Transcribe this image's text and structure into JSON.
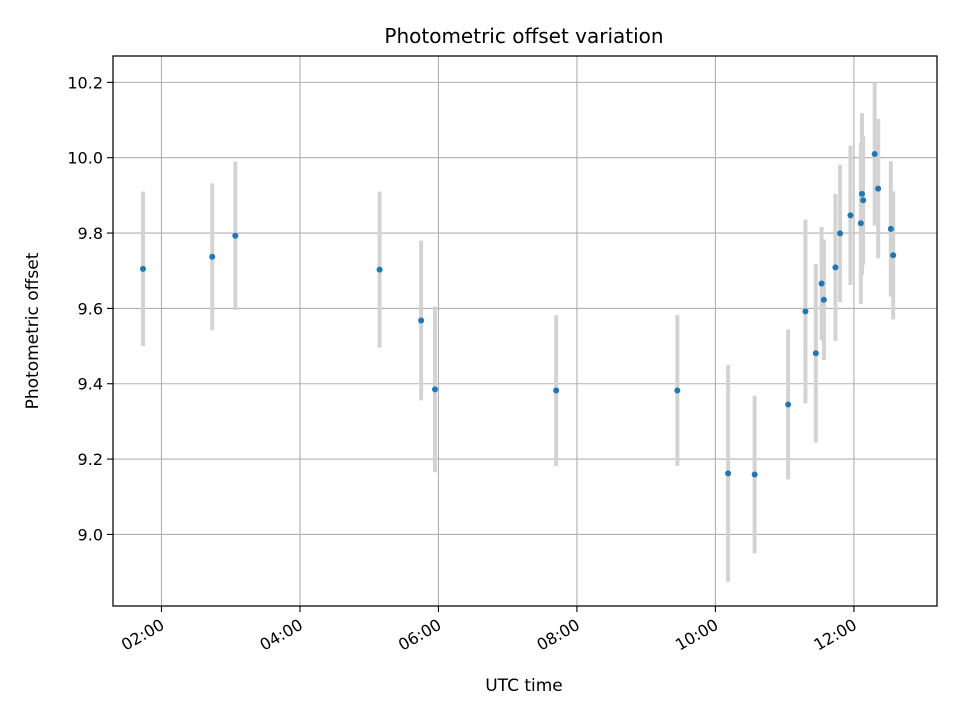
{
  "chart_data": {
    "type": "scatter",
    "title": "Photometric offset variation",
    "xlabel": "UTC time",
    "ylabel": "Photometric offset",
    "x_axis": {
      "kind": "time",
      "range": [
        "01:18",
        "13:12"
      ],
      "ticks": [
        "02:00",
        "04:00",
        "06:00",
        "08:00",
        "10:00",
        "12:00"
      ]
    },
    "y_axis": {
      "range": [
        8.81,
        10.27
      ],
      "ticks": [
        9.0,
        9.2,
        9.4,
        9.6,
        9.8,
        10.0,
        10.2
      ],
      "tick_labels": [
        "9.0",
        "9.2",
        "9.4",
        "9.6",
        "9.8",
        "10.0",
        "10.2"
      ]
    },
    "grid": true,
    "legend": "none",
    "colors": {
      "point": "#1f77b4",
      "errorbar": "#d3d3d3",
      "grid": "#b0b0b0"
    },
    "points": [
      {
        "x": "01:44",
        "y": 9.705,
        "err": 0.205
      },
      {
        "x": "02:44",
        "y": 9.737,
        "err": 0.195
      },
      {
        "x": "03:04",
        "y": 9.793,
        "err": 0.197
      },
      {
        "x": "05:09",
        "y": 9.703,
        "err": 0.207
      },
      {
        "x": "05:45",
        "y": 9.568,
        "err": 0.212
      },
      {
        "x": "05:57",
        "y": 9.385,
        "err": 0.22
      },
      {
        "x": "07:42",
        "y": 9.382,
        "err": 0.2
      },
      {
        "x": "09:27",
        "y": 9.382,
        "err": 0.2
      },
      {
        "x": "10:11",
        "y": 9.162,
        "err": 0.288
      },
      {
        "x": "10:34",
        "y": 9.159,
        "err": 0.209
      },
      {
        "x": "11:03",
        "y": 9.345,
        "err": 0.199
      },
      {
        "x": "11:18",
        "y": 9.592,
        "err": 0.244
      },
      {
        "x": "11:27",
        "y": 9.481,
        "err": 0.237
      },
      {
        "x": "11:32",
        "y": 9.666,
        "err": 0.15
      },
      {
        "x": "11:34",
        "y": 9.623,
        "err": 0.16
      },
      {
        "x": "11:44",
        "y": 9.709,
        "err": 0.195
      },
      {
        "x": "11:48",
        "y": 9.799,
        "err": 0.182
      },
      {
        "x": "11:57",
        "y": 9.847,
        "err": 0.185
      },
      {
        "x": "12:06",
        "y": 9.826,
        "err": 0.214
      },
      {
        "x": "12:07",
        "y": 9.904,
        "err": 0.215
      },
      {
        "x": "12:08",
        "y": 9.887,
        "err": 0.171
      },
      {
        "x": "12:18",
        "y": 10.01,
        "err": 0.19
      },
      {
        "x": "12:21",
        "y": 9.918,
        "err": 0.185
      },
      {
        "x": "12:32",
        "y": 9.811,
        "err": 0.18
      },
      {
        "x": "12:34",
        "y": 9.741,
        "err": 0.17
      }
    ]
  }
}
